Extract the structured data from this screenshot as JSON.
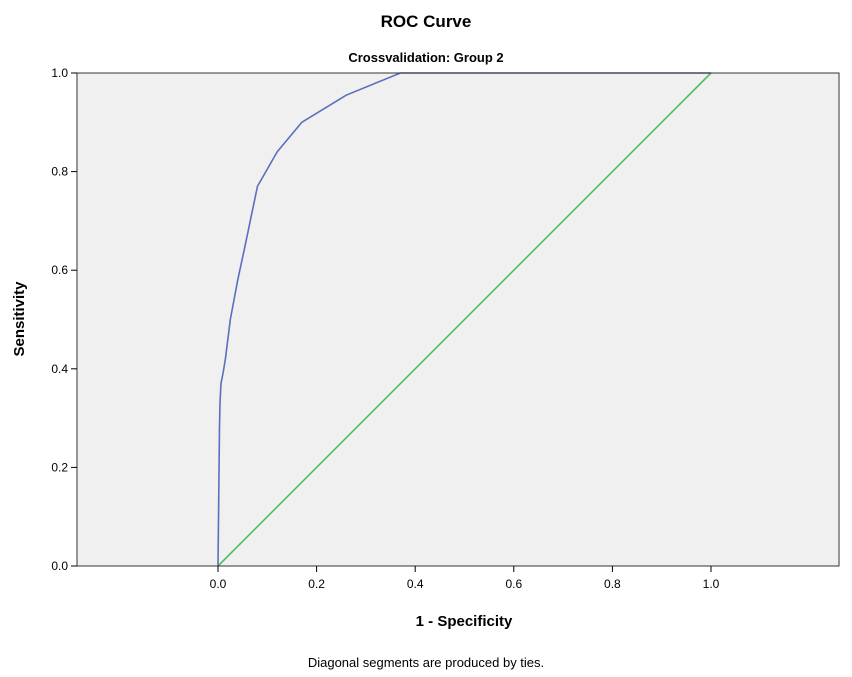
{
  "chart_data": {
    "type": "line",
    "title": "ROC Curve",
    "subtitle": "Crossvalidation: Group 2",
    "xlabel": "1 - Specificity",
    "ylabel": "Sensitivity",
    "xlim": [
      0.0,
      1.0
    ],
    "ylim": [
      0.0,
      1.0
    ],
    "x_ticks": [
      "0.0",
      "0.2",
      "0.4",
      "0.6",
      "0.8",
      "1.0"
    ],
    "y_ticks": [
      "0.0",
      "0.2",
      "0.4",
      "0.6",
      "0.8",
      "1.0"
    ],
    "grid": false,
    "legend": "none",
    "footnote": "Diagonal segments are produced by ties.",
    "series": [
      {
        "color": "#5b6fbf",
        "x": [
          0.0,
          0.003,
          0.004,
          0.006,
          0.01,
          0.015,
          0.025,
          0.04,
          0.055,
          0.08,
          0.12,
          0.17,
          0.26,
          0.37,
          1.0
        ],
        "y": [
          0.0,
          0.28,
          0.33,
          0.37,
          0.39,
          0.42,
          0.5,
          0.58,
          0.65,
          0.77,
          0.84,
          0.9,
          0.955,
          1.0,
          1.0
        ]
      },
      {
        "color": "#4cc060",
        "x": [
          0.0,
          1.0
        ],
        "y": [
          0.0,
          1.0
        ]
      }
    ],
    "colors": {
      "plot_background": "#f0f0f0",
      "frame": "#333333"
    }
  }
}
